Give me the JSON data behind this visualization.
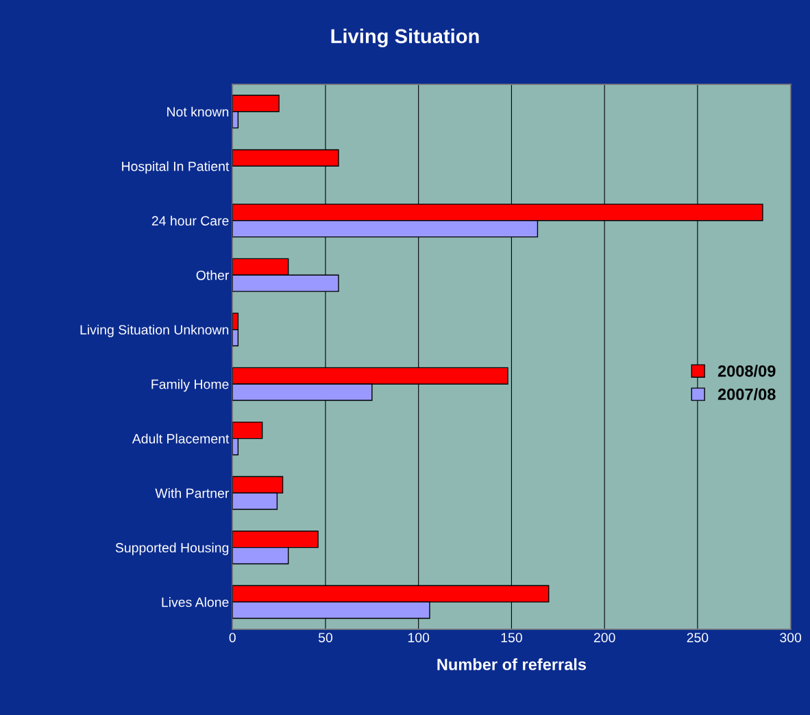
{
  "chart_data": {
    "type": "bar",
    "orientation": "horizontal",
    "title": "Living Situation",
    "xlabel": "Number of referrals",
    "categories": [
      "Not known",
      "Hospital In Patient",
      "24 hour Care",
      "Other",
      "Living Situation Unknown",
      "Family Home",
      "Adult Placement",
      "With Partner",
      "Supported Housing",
      "Lives Alone"
    ],
    "series": [
      {
        "name": "2008/09",
        "color": "#ff0000",
        "values": [
          25,
          57,
          285,
          30,
          3,
          148,
          16,
          27,
          46,
          170
        ]
      },
      {
        "name": "2007/08",
        "color": "#9999ff",
        "values": [
          3,
          null,
          164,
          57,
          3,
          75,
          3,
          24,
          30,
          106
        ]
      }
    ],
    "xlim": [
      0,
      300
    ],
    "xticks": [
      0,
      50,
      100,
      150,
      200,
      250,
      300
    ],
    "grid": "x",
    "legend": "right"
  }
}
